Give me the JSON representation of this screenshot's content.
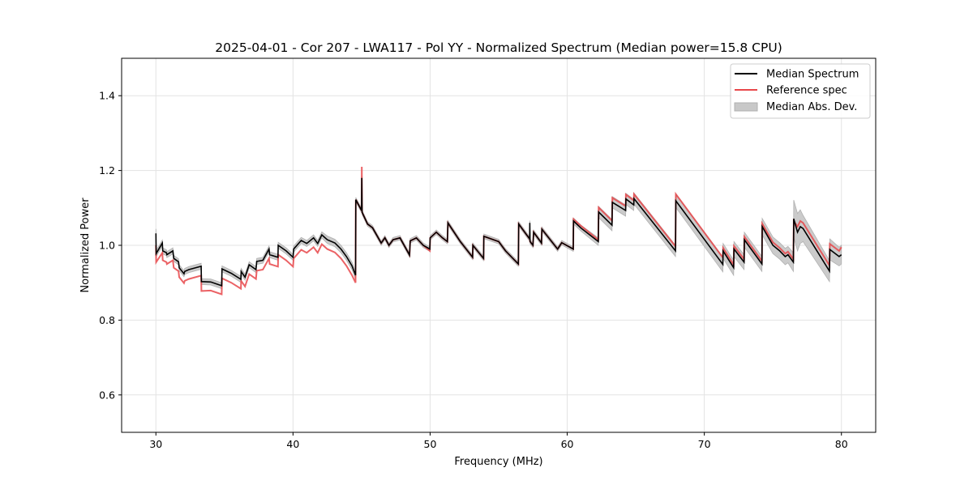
{
  "chart_data": {
    "type": "line",
    "title": "2025-04-01 - Cor 207 - LWA117 - Pol YY - Normalized Spectrum (Median power=15.8 CPU)",
    "xlabel": "Frequency (MHz)",
    "ylabel": "Normalized Power",
    "xlim": [
      27.5,
      82.5
    ],
    "ylim": [
      0.5,
      1.5
    ],
    "xticks": [
      30,
      40,
      50,
      60,
      70,
      80
    ],
    "yticks": [
      0.6,
      0.8,
      1.0,
      1.2,
      1.4
    ],
    "xtick_labels": [
      "30",
      "40",
      "50",
      "60",
      "70",
      "80"
    ],
    "ytick_labels": [
      "0.6",
      "0.8",
      "1.0",
      "1.2",
      "1.4"
    ],
    "grid": true,
    "legend_position": "top-right",
    "legend": [
      "Median Spectrum",
      "Reference spec",
      "Median Abs. Dev."
    ],
    "colors": {
      "median": "#000000",
      "reference": "#e8474a",
      "mad": "#c8c8c8"
    },
    "points_columns": [
      "freq_mhz",
      "median",
      "reference",
      "mad"
    ],
    "points": [
      [
        30.0,
        1.032,
        1.0,
        0.012
      ],
      [
        30.02,
        0.978,
        0.955,
        0.008
      ],
      [
        30.47,
        1.006,
        0.98,
        0.008
      ],
      [
        30.5,
        0.985,
        0.96,
        0.008
      ],
      [
        30.77,
        0.98,
        0.955,
        0.008
      ],
      [
        30.8,
        0.975,
        0.95,
        0.008
      ],
      [
        31.24,
        0.985,
        0.96,
        0.008
      ],
      [
        31.3,
        0.965,
        0.94,
        0.008
      ],
      [
        31.65,
        0.956,
        0.931,
        0.008
      ],
      [
        31.7,
        0.94,
        0.915,
        0.008
      ],
      [
        32.05,
        0.924,
        0.899,
        0.008
      ],
      [
        32.1,
        0.93,
        0.905,
        0.008
      ],
      [
        32.4,
        0.935,
        0.91,
        0.008
      ],
      [
        33.3,
        0.944,
        0.919,
        0.008
      ],
      [
        33.32,
        0.903,
        0.878,
        0.008
      ],
      [
        34.0,
        0.902,
        0.879,
        0.008
      ],
      [
        34.8,
        0.892,
        0.869,
        0.008
      ],
      [
        34.82,
        0.937,
        0.912,
        0.008
      ],
      [
        35.5,
        0.925,
        0.9,
        0.008
      ],
      [
        36.2,
        0.909,
        0.884,
        0.008
      ],
      [
        36.22,
        0.93,
        0.905,
        0.008
      ],
      [
        36.5,
        0.915,
        0.89,
        0.008
      ],
      [
        36.8,
        0.948,
        0.923,
        0.008
      ],
      [
        37.3,
        0.935,
        0.91,
        0.008
      ],
      [
        37.35,
        0.957,
        0.932,
        0.008
      ],
      [
        37.8,
        0.96,
        0.935,
        0.008
      ],
      [
        38.25,
        0.99,
        0.965,
        0.008
      ],
      [
        38.3,
        0.975,
        0.95,
        0.008
      ],
      [
        38.9,
        0.968,
        0.943,
        0.008
      ],
      [
        38.92,
        1.0,
        0.975,
        0.008
      ],
      [
        39.5,
        0.985,
        0.96,
        0.008
      ],
      [
        40.0,
        0.968,
        0.943,
        0.008
      ],
      [
        40.05,
        0.99,
        0.965,
        0.008
      ],
      [
        40.6,
        1.013,
        0.988,
        0.008
      ],
      [
        41.0,
        1.005,
        0.98,
        0.008
      ],
      [
        41.5,
        1.02,
        0.995,
        0.008
      ],
      [
        41.8,
        1.005,
        0.98,
        0.008
      ],
      [
        42.1,
        1.028,
        1.003,
        0.008
      ],
      [
        42.5,
        1.015,
        0.99,
        0.01
      ],
      [
        43.06,
        1.006,
        0.981,
        0.01
      ],
      [
        43.5,
        0.99,
        0.965,
        0.01
      ],
      [
        43.9,
        0.97,
        0.945,
        0.01
      ],
      [
        44.3,
        0.945,
        0.92,
        0.01
      ],
      [
        44.56,
        0.92,
        0.9,
        0.01
      ],
      [
        44.58,
        1.122,
        1.122,
        0.006
      ],
      [
        44.9,
        1.1,
        1.1,
        0.006
      ],
      [
        45.0,
        1.093,
        1.093,
        0.006
      ],
      [
        45.02,
        1.18,
        1.21,
        0.006
      ],
      [
        45.04,
        1.088,
        1.088,
        0.006
      ],
      [
        45.44,
        1.057,
        1.057,
        0.006
      ],
      [
        45.8,
        1.047,
        1.047,
        0.006
      ],
      [
        46.43,
        1.006,
        1.006,
        0.006
      ],
      [
        46.7,
        1.02,
        1.02,
        0.006
      ],
      [
        47.0,
        1.0,
        1.0,
        0.006
      ],
      [
        47.3,
        1.015,
        1.015,
        0.006
      ],
      [
        47.8,
        1.02,
        1.02,
        0.006
      ],
      [
        48.5,
        0.974,
        0.974,
        0.006
      ],
      [
        48.55,
        1.012,
        1.012,
        0.006
      ],
      [
        49.0,
        1.02,
        1.02,
        0.006
      ],
      [
        49.5,
        1.0,
        1.0,
        0.006
      ],
      [
        49.98,
        0.99,
        0.985,
        0.006
      ],
      [
        50.0,
        1.02,
        1.02,
        0.006
      ],
      [
        50.45,
        1.035,
        1.035,
        0.006
      ],
      [
        50.9,
        1.02,
        1.02,
        0.006
      ],
      [
        51.26,
        1.01,
        1.01,
        0.006
      ],
      [
        51.3,
        1.06,
        1.06,
        0.006
      ],
      [
        52.2,
        1.01,
        1.01,
        0.006
      ],
      [
        53.1,
        0.968,
        0.968,
        0.006
      ],
      [
        53.12,
        1.0,
        1.0,
        0.006
      ],
      [
        53.9,
        0.965,
        0.965,
        0.006
      ],
      [
        53.92,
        1.024,
        1.024,
        0.006
      ],
      [
        55.0,
        1.01,
        1.01,
        0.006
      ],
      [
        55.5,
        0.985,
        0.985,
        0.006
      ],
      [
        56.44,
        0.95,
        0.95,
        0.006
      ],
      [
        56.46,
        1.057,
        1.057,
        0.006
      ],
      [
        57.0,
        1.03,
        1.03,
        0.006
      ],
      [
        57.26,
        1.017,
        1.017,
        0.006
      ],
      [
        57.27,
        1.06,
        1.02,
        0.006
      ],
      [
        57.29,
        1.01,
        1.01,
        0.006
      ],
      [
        57.5,
        1.0,
        1.0,
        0.006
      ],
      [
        57.55,
        1.035,
        1.035,
        0.006
      ],
      [
        58.13,
        1.006,
        1.006,
        0.006
      ],
      [
        58.15,
        1.043,
        1.043,
        0.006
      ],
      [
        59.3,
        0.99,
        0.99,
        0.006
      ],
      [
        59.6,
        1.007,
        1.007,
        0.006
      ],
      [
        60.44,
        0.99,
        0.99,
        0.006
      ],
      [
        60.46,
        1.065,
        1.07,
        0.008
      ],
      [
        61.0,
        1.046,
        1.052,
        0.008
      ],
      [
        62.27,
        1.01,
        1.015,
        0.01
      ],
      [
        62.29,
        1.089,
        1.101,
        0.015
      ],
      [
        63.27,
        1.054,
        1.066,
        0.015
      ],
      [
        63.29,
        1.115,
        1.127,
        0.015
      ],
      [
        64.26,
        1.093,
        1.105,
        0.015
      ],
      [
        64.28,
        1.124,
        1.136,
        0.015
      ],
      [
        64.85,
        1.108,
        1.12,
        0.015
      ],
      [
        64.87,
        1.125,
        1.137,
        0.015
      ],
      [
        67.9,
        0.985,
        0.997,
        0.015
      ],
      [
        67.92,
        1.119,
        1.137,
        0.018
      ],
      [
        71.35,
        0.949,
        0.967,
        0.02
      ],
      [
        71.37,
        0.985,
        0.993,
        0.02
      ],
      [
        72.14,
        0.94,
        0.948,
        0.02
      ],
      [
        72.16,
        0.99,
        0.998,
        0.02
      ],
      [
        72.9,
        0.955,
        0.963,
        0.02
      ],
      [
        72.92,
        1.015,
        1.023,
        0.02
      ],
      [
        74.2,
        0.95,
        0.958,
        0.02
      ],
      [
        74.22,
        1.05,
        1.058,
        0.022
      ],
      [
        75.0,
        1.0,
        1.008,
        0.022
      ],
      [
        75.5,
        0.985,
        0.993,
        0.022
      ],
      [
        75.9,
        0.97,
        0.978,
        0.022
      ],
      [
        76.1,
        0.975,
        0.983,
        0.022
      ],
      [
        76.5,
        0.955,
        0.963,
        0.025
      ],
      [
        76.52,
        1.071,
        1.065,
        0.05
      ],
      [
        76.8,
        1.035,
        1.05,
        0.05
      ],
      [
        77.0,
        1.05,
        1.065,
        0.045
      ],
      [
        77.2,
        1.045,
        1.06,
        0.035
      ],
      [
        79.13,
        0.931,
        0.946,
        0.028
      ],
      [
        79.15,
        0.989,
        1.004,
        0.028
      ],
      [
        79.83,
        0.97,
        0.985,
        0.025
      ],
      [
        80.0,
        0.975,
        0.995,
        0.025
      ]
    ]
  }
}
